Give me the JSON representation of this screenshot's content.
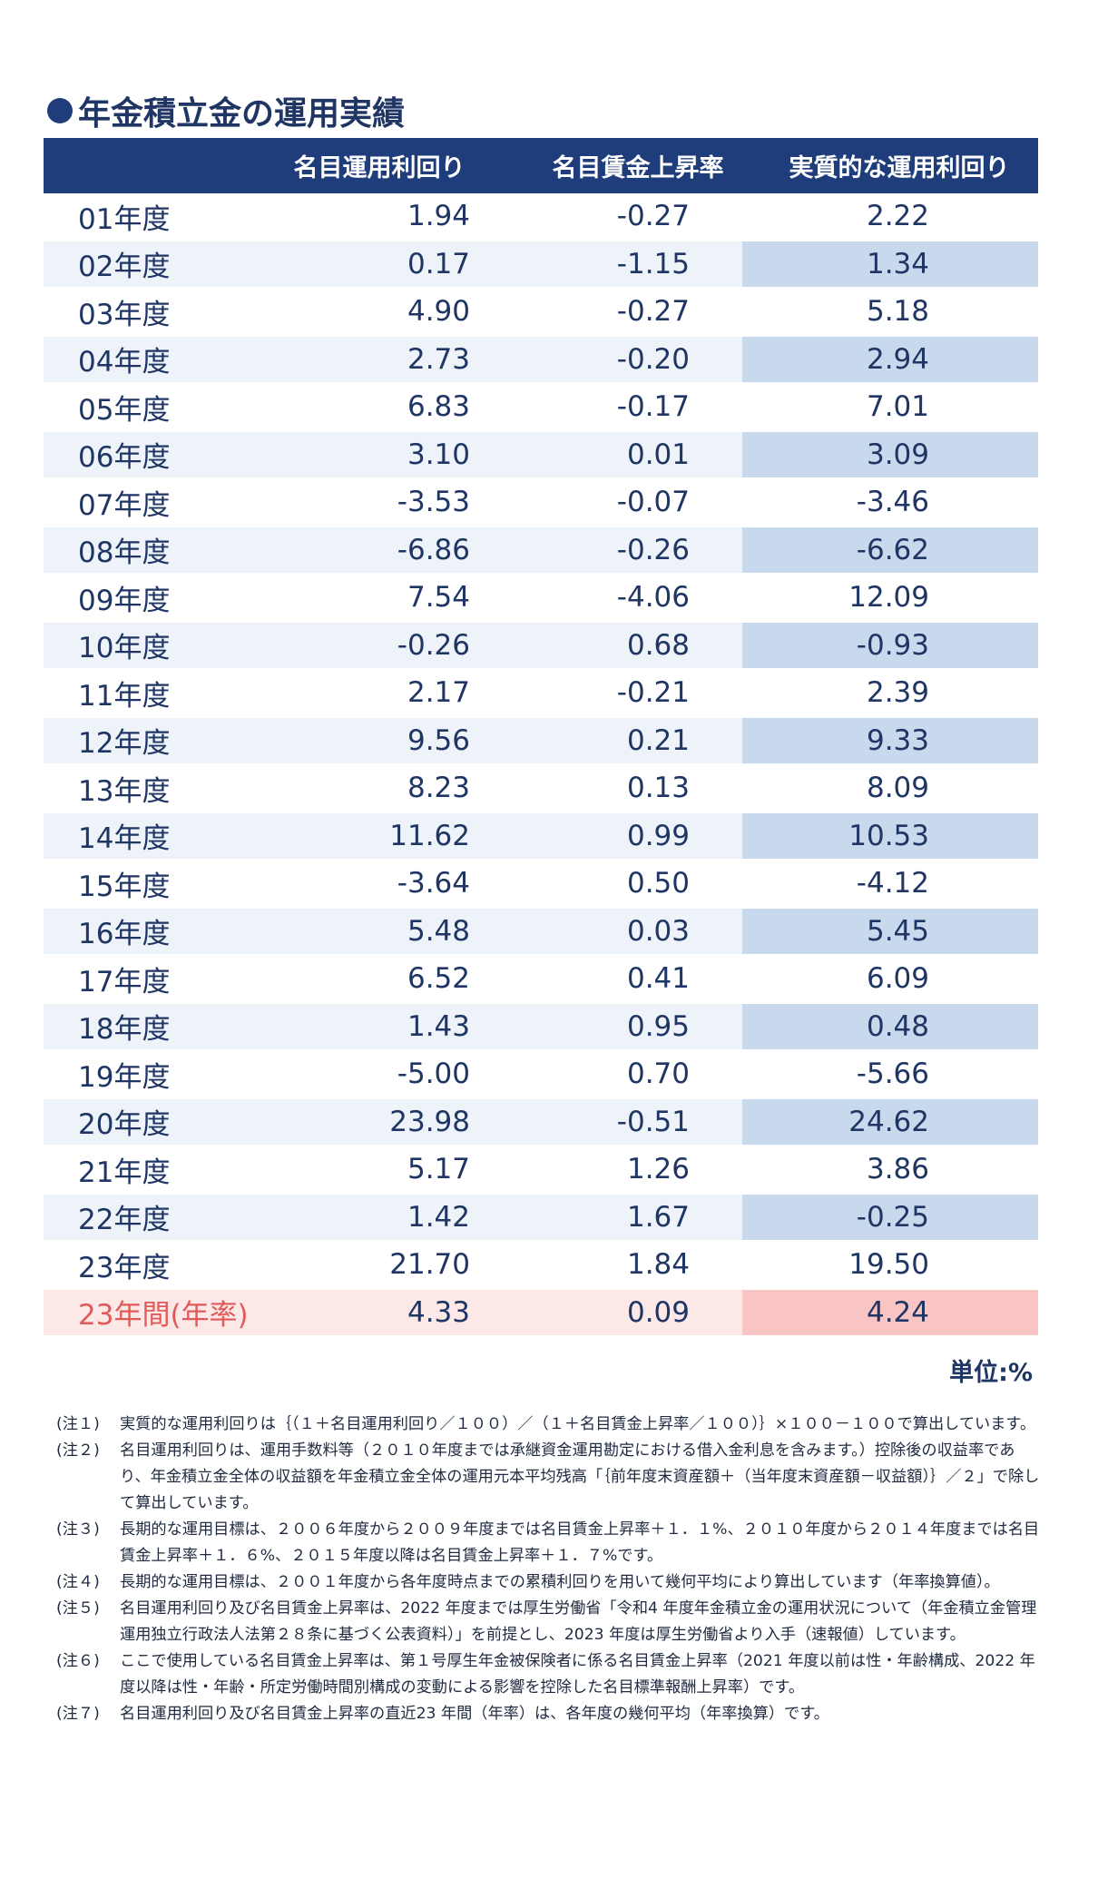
{
  "title": "年金積立金の運用実績",
  "headers": [
    "",
    "名目運用利回り",
    "名目賃金上昇率",
    "実質的な運用利回り"
  ],
  "rows": [
    {
      "year": "01年度",
      "nominal": "1.94",
      "wage": "-0.27",
      "real": "2.22"
    },
    {
      "year": "02年度",
      "nominal": "0.17",
      "wage": "-1.15",
      "real": "1.34"
    },
    {
      "year": "03年度",
      "nominal": "4.90",
      "wage": "-0.27",
      "real": "5.18"
    },
    {
      "year": "04年度",
      "nominal": "2.73",
      "wage": "-0.20",
      "real": "2.94"
    },
    {
      "year": "05年度",
      "nominal": "6.83",
      "wage": "-0.17",
      "real": "7.01"
    },
    {
      "year": "06年度",
      "nominal": "3.10",
      "wage": "0.01",
      "real": "3.09"
    },
    {
      "year": "07年度",
      "nominal": "-3.53",
      "wage": "-0.07",
      "real": "-3.46"
    },
    {
      "year": "08年度",
      "nominal": "-6.86",
      "wage": "-0.26",
      "real": "-6.62"
    },
    {
      "year": "09年度",
      "nominal": "7.54",
      "wage": "-4.06",
      "real": "12.09"
    },
    {
      "year": "10年度",
      "nominal": "-0.26",
      "wage": "0.68",
      "real": "-0.93"
    },
    {
      "year": "11年度",
      "nominal": "2.17",
      "wage": "-0.21",
      "real": "2.39"
    },
    {
      "year": "12年度",
      "nominal": "9.56",
      "wage": "0.21",
      "real": "9.33"
    },
    {
      "year": "13年度",
      "nominal": "8.23",
      "wage": "0.13",
      "real": "8.09"
    },
    {
      "year": "14年度",
      "nominal": "11.62",
      "wage": "0.99",
      "real": "10.53"
    },
    {
      "year": "15年度",
      "nominal": "-3.64",
      "wage": "0.50",
      "real": "-4.12"
    },
    {
      "year": "16年度",
      "nominal": "5.48",
      "wage": "0.03",
      "real": "5.45"
    },
    {
      "year": "17年度",
      "nominal": "6.52",
      "wage": "0.41",
      "real": "6.09"
    },
    {
      "year": "18年度",
      "nominal": "1.43",
      "wage": "0.95",
      "real": "0.48"
    },
    {
      "year": "19年度",
      "nominal": "-5.00",
      "wage": "0.70",
      "real": "-5.66"
    },
    {
      "year": "20年度",
      "nominal": "23.98",
      "wage": "-0.51",
      "real": "24.62"
    },
    {
      "year": "21年度",
      "nominal": "5.17",
      "wage": "1.26",
      "real": "3.86"
    },
    {
      "year": "22年度",
      "nominal": "1.42",
      "wage": "1.67",
      "real": "-0.25"
    },
    {
      "year": "23年度",
      "nominal": "21.70",
      "wage": "1.84",
      "real": "19.50"
    }
  ],
  "total": {
    "year": "23年間(年率)",
    "nominal": "4.33",
    "wage": "0.09",
    "real": "4.24"
  },
  "unit": "単位:%",
  "notes": [
    {
      "label": "(注１)",
      "text": "実質的な運用利回りは｛（１＋名目運用利回り／１００）／（１＋名目賃金上昇率／１００）｝×１００－１００で算出しています。"
    },
    {
      "label": "(注２)",
      "text": "名目運用利回りは、運用手数料等（２０１０年度までは承継資金運用勘定における借入金利息を含みます。）控除後の収益率であり、年金積立金全体の収益額を年金積立金全体の運用元本平均残高「｛前年度末資産額＋（当年度末資産額－収益額）｝／２」で除して算出しています。"
    },
    {
      "label": "(注３)",
      "text": "長期的な運用目標は、２００６年度から２００９年度までは名目賃金上昇率＋１．１%、２０１０年度から２０１４年度までは名目賃金上昇率＋１．６%、２０１５年度以降は名目賃金上昇率＋１．７%です。"
    },
    {
      "label": "(注４)",
      "text": "長期的な運用目標は、２００１年度から各年度時点までの累積利回りを用いて幾何平均により算出しています（年率換算値）。"
    },
    {
      "label": "(注５)",
      "text": "名目運用利回り及び名目賃金上昇率は、2022 年度までは厚生労働省「令和4 年度年金積立金の運用状況について（年金積立金管理運用独立行政法人法第２８条に基づく公表資料）」を前提とし、2023 年度は厚生労働省より入手（速報値）しています。"
    },
    {
      "label": "(注６)",
      "text": "ここで使用している名目賃金上昇率は、第１号厚生年金被保険者に係る名目賃金上昇率（2021 年度以前は性・年齢構成、2022 年度以降は性・年齢・所定労働時間別構成の変動による影響を控除した名目標準報酬上昇率）です。"
    },
    {
      "label": "(注７)",
      "text": "名目運用利回り及び名目賃金上昇率の直近23 年間（年率）は、各年度の幾何平均（年率換算）です。"
    }
  ]
}
